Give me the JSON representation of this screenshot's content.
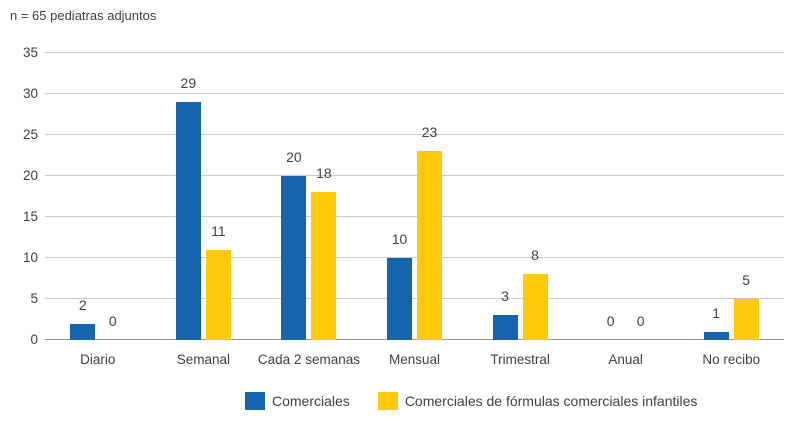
{
  "chart_data": {
    "type": "bar",
    "title": "n = 65 pediatras adjuntos",
    "categories": [
      "Diario",
      "Semanal",
      "Cada 2 semanas",
      "Mensual",
      "Trimestral",
      "Anual",
      "No recibo"
    ],
    "series": [
      {
        "name": "Comerciales",
        "color": "#1564AD",
        "values": [
          2,
          29,
          20,
          10,
          3,
          0,
          1
        ]
      },
      {
        "name": "Comerciales de fórmulas comerciales infantiles",
        "color": "#FFC90C",
        "values": [
          0,
          11,
          18,
          23,
          8,
          0,
          5
        ]
      }
    ],
    "xlabel": "",
    "ylabel": "",
    "ylim": [
      0,
      35
    ],
    "yticks": [
      0,
      5,
      10,
      15,
      20,
      25,
      30,
      35
    ],
    "grid": true,
    "show_value_labels": true,
    "legend_position": "bottom",
    "colors": {
      "text": "#404040",
      "gridline": "#c9c9c9",
      "axis_line": "#9c9c9c",
      "background": "#ffffff"
    }
  }
}
